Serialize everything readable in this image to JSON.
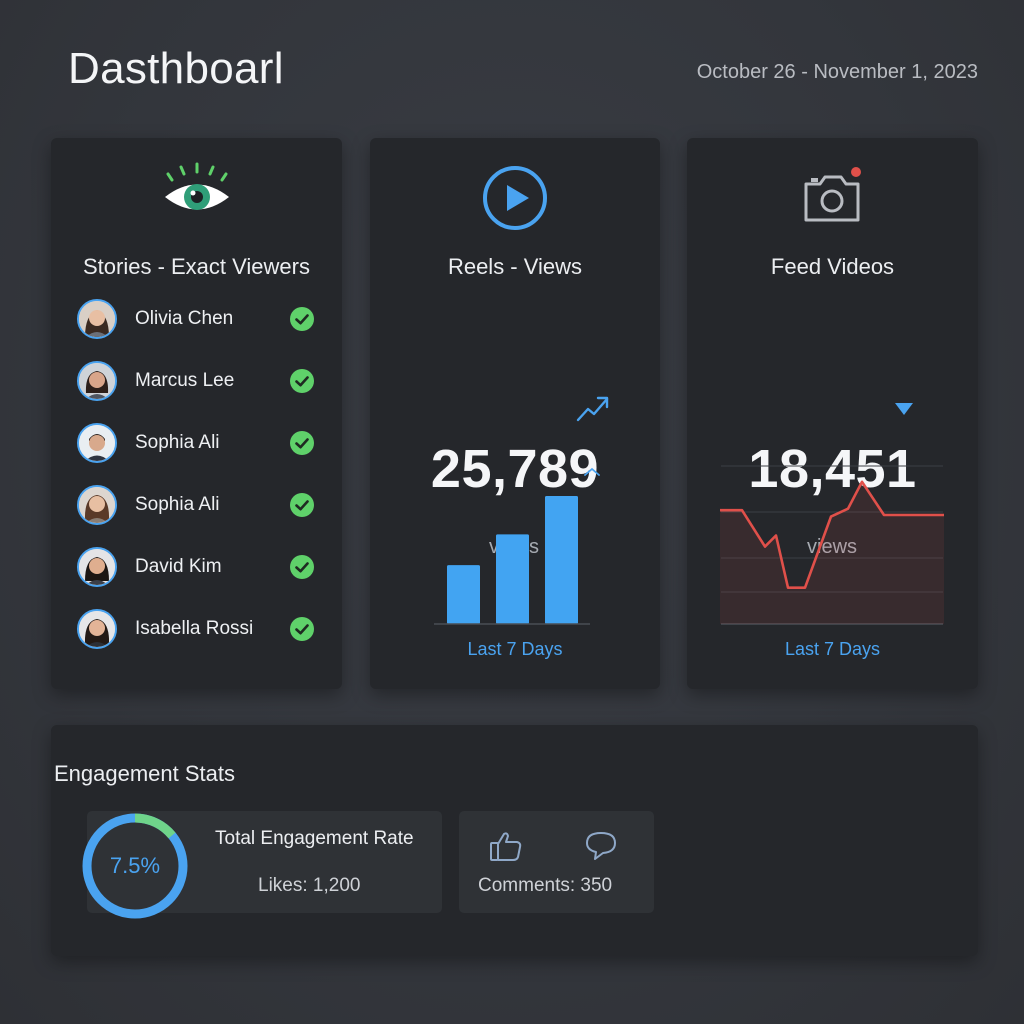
{
  "header": {
    "title": "Dasthboarl",
    "date_range": "October 26 - November 1, 2023"
  },
  "colors": {
    "accent_blue": "#4aa3f0",
    "check_green": "#5fd16a",
    "eye_green": "#2f9e78",
    "line_red": "#e0504a"
  },
  "stories": {
    "icon": "eye-icon",
    "title": "Stories - Exact Viewers",
    "viewers": [
      {
        "name": "Olivia Chen",
        "status_icon": "check-circle-icon"
      },
      {
        "name": "Marcus Lee",
        "status_icon": "check-circle-icon"
      },
      {
        "name": "Sophia Ali",
        "status_icon": "check-circle-icon"
      },
      {
        "name": "Sophia Ali",
        "status_icon": "check-circle-icon"
      },
      {
        "name": "David Kim",
        "status_icon": "check-circle-icon"
      },
      {
        "name": "Isabella Rossi",
        "status_icon": "check-circle-icon"
      }
    ]
  },
  "reels": {
    "icon": "play-circle-icon",
    "title": "Reels - Views",
    "value": "25,789",
    "unit": "views",
    "trend_icon": "trending-up-icon",
    "period": "Last 7 Days",
    "bars": [
      0.46,
      0.7,
      1.0
    ]
  },
  "feed": {
    "icon": "camera-icon",
    "title": "Feed Videos",
    "value": "18,451",
    "unit": "views",
    "trend_icon": "triangle-down-icon",
    "period": "Last 7 Days",
    "line": [
      0.72,
      0.72,
      0.49,
      0.56,
      0.23,
      0.23,
      0.68,
      0.73,
      0.9,
      0.69,
      0.69,
      0.69
    ]
  },
  "engagement": {
    "title": "Engagement Stats",
    "rate_value": "7.5%",
    "rate_label": "Total Engagement Rate",
    "likes": "Likes: 1,200",
    "comments": "Comments: 350",
    "donut_green_fraction": 0.14
  }
}
